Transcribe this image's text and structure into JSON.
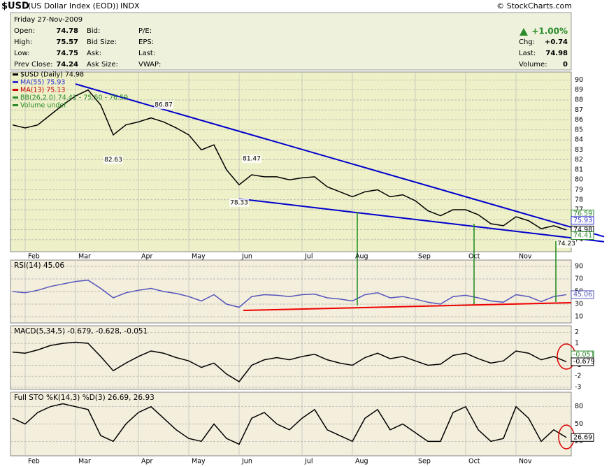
{
  "header": {
    "symbol": "$USD",
    "name": "(US Dollar Index (EOD))",
    "exchange": "INDX",
    "credit": "© StockCharts.com"
  },
  "quote": {
    "date": "Friday  27-Nov-2009",
    "col1": [
      {
        "label": "Open:",
        "value": 74.78
      },
      {
        "label": "High:",
        "value": 75.57
      },
      {
        "label": "Low:",
        "value": 74.75
      },
      {
        "label": "Prev Close:",
        "value": 74.24
      }
    ],
    "col2": [
      "Bid:",
      "Bid Size:",
      "Ask:",
      "Ask Size:"
    ],
    "col3": [
      "P/E:",
      "EPS:",
      "Last:",
      "VWAP:"
    ],
    "change_pct": "+1.00%",
    "right": [
      {
        "label": "Chg:",
        "value": "+0.74"
      },
      {
        "label": "Last:",
        "value": 74.98
      },
      {
        "label": "Volume:",
        "value": 0
      }
    ]
  },
  "chart_data": [
    {
      "type": "line",
      "legend": [
        {
          "text": "$USD (Daily) 74.98",
          "color": "#000000"
        },
        {
          "text": "MA(55) 75.93",
          "color": "#3333cc"
        },
        {
          "text": "MA(13) 75.13",
          "color": "#cc0000"
        },
        {
          "text": "BB(26,2.0) 74.41 - 75.50 - 76.59",
          "color": "#2a8a2a"
        },
        {
          "text": "Volume undef",
          "color": "#2a8a2a"
        }
      ],
      "categories": [
        null,
        "Feb",
        null,
        null,
        null,
        "Mar",
        null,
        null,
        null,
        null,
        "Apr",
        null,
        null,
        null,
        "May",
        null,
        null,
        null,
        "Jun",
        null,
        null,
        null,
        null,
        "Jul",
        null,
        null,
        null,
        "Aug",
        null,
        null,
        null,
        null,
        "Sep",
        null,
        null,
        null,
        "Oct",
        null,
        null,
        null,
        "Nov",
        null,
        null,
        null,
        null
      ],
      "series": [
        {
          "color": "#000000",
          "values": [
            85.5,
            85.2,
            85.5,
            86.5,
            87.5,
            88.4,
            89.0,
            87.5,
            84.5,
            85.5,
            85.8,
            86.2,
            85.8,
            85.2,
            84.5,
            83.0,
            83.5,
            81.0,
            79.5,
            80.5,
            80.3,
            80.3,
            80.0,
            80.2,
            80.3,
            79.3,
            78.8,
            78.3,
            78.8,
            79.0,
            78.3,
            78.5,
            77.9,
            76.9,
            76.4,
            77.0,
            77.0,
            76.5,
            75.6,
            75.4,
            76.3,
            75.9,
            75.1,
            75.4,
            74.98
          ]
        }
      ],
      "ylim": [
        72.8,
        90.8
      ],
      "yticks": [
        74,
        75,
        76,
        77,
        78,
        79,
        80,
        81,
        82,
        83,
        84,
        85,
        86,
        87,
        88,
        89,
        90
      ],
      "grid": true,
      "annotations": [
        {
          "index": 12,
          "value": 86.87,
          "side": "above"
        },
        {
          "index": 8,
          "value": 82.63,
          "side": "below"
        },
        {
          "index": 19,
          "value": 81.47,
          "side": "above"
        },
        {
          "index": 18,
          "value": 78.33,
          "side": "below"
        },
        {
          "index": 44,
          "value": 74.23,
          "side": "below"
        }
      ],
      "trendlines": [
        {
          "color": "#0000cc",
          "x": [
            5,
            47
          ],
          "y": [
            89.6,
            74.3
          ]
        },
        {
          "color": "#0000cc",
          "x": [
            18,
            47
          ],
          "y": [
            78.1,
            73.8
          ]
        }
      ],
      "right_labels": [
        {
          "value": 76.59,
          "color": "#2a8a2a"
        },
        {
          "value": 75.93,
          "color": "#3333cc"
        },
        {
          "value": 74.98,
          "color": "#000000"
        },
        {
          "value": 74.41,
          "color": "#2a8a2a"
        }
      ]
    },
    {
      "type": "line",
      "title": "RSI(14) 45.06",
      "series": [
        {
          "color": "#5555bb",
          "values": [
            50,
            48,
            52,
            58,
            62,
            66,
            68,
            55,
            40,
            48,
            52,
            55,
            50,
            47,
            42,
            35,
            45,
            30,
            25,
            42,
            45,
            44,
            42,
            45,
            46,
            40,
            38,
            35,
            45,
            48,
            40,
            42,
            38,
            33,
            30,
            42,
            44,
            40,
            35,
            33,
            45,
            42,
            34,
            42,
            45.06
          ]
        }
      ],
      "ylim": [
        0,
        100
      ],
      "yticks": [
        10,
        30,
        50,
        70,
        90
      ],
      "grid": true,
      "right_labels": [
        {
          "value": 45.06,
          "color": "#5555bb"
        }
      ]
    },
    {
      "type": "line",
      "title": "MACD(5,34,5) -0.679, -0.628, -0.051",
      "series": [
        {
          "color": "#000000",
          "values": [
            0.2,
            0.1,
            0.4,
            0.8,
            1.0,
            1.1,
            1.0,
            -0.2,
            -1.5,
            -0.8,
            -0.2,
            0.3,
            0.1,
            -0.3,
            -0.6,
            -1.2,
            -0.8,
            -1.8,
            -2.5,
            -1.0,
            -0.5,
            -0.3,
            -0.5,
            -0.2,
            0.0,
            -0.5,
            -0.8,
            -1.0,
            -0.3,
            0.1,
            -0.4,
            -0.2,
            -0.6,
            -1.0,
            -0.9,
            -0.1,
            0.1,
            -0.4,
            -0.8,
            -0.6,
            0.3,
            0.1,
            -0.5,
            -0.2,
            -0.679
          ]
        }
      ],
      "ylim": [
        -3.2,
        2.6
      ],
      "yticks": [
        -3,
        -2,
        -1,
        1,
        2
      ],
      "grid": true,
      "right_labels": [
        {
          "value": -0.051,
          "color": "#2a8a2a"
        },
        {
          "value": -0.679,
          "color": "#000000"
        }
      ]
    },
    {
      "type": "line",
      "title": "Full STO %K(14,3) %D(3) 26.69, 26.93",
      "series": [
        {
          "color": "#000000",
          "values": [
            60,
            50,
            70,
            80,
            85,
            80,
            75,
            30,
            20,
            50,
            70,
            80,
            60,
            40,
            25,
            20,
            50,
            25,
            15,
            60,
            70,
            50,
            40,
            60,
            75,
            40,
            30,
            20,
            60,
            75,
            40,
            50,
            35,
            20,
            20,
            70,
            80,
            40,
            20,
            25,
            80,
            60,
            20,
            40,
            26.69
          ]
        }
      ],
      "ylim": [
        -5,
        105
      ],
      "yticks": [
        20,
        50,
        80
      ],
      "grid": true,
      "right_labels": [
        {
          "value": 26.69,
          "color": "#000000"
        }
      ]
    }
  ]
}
